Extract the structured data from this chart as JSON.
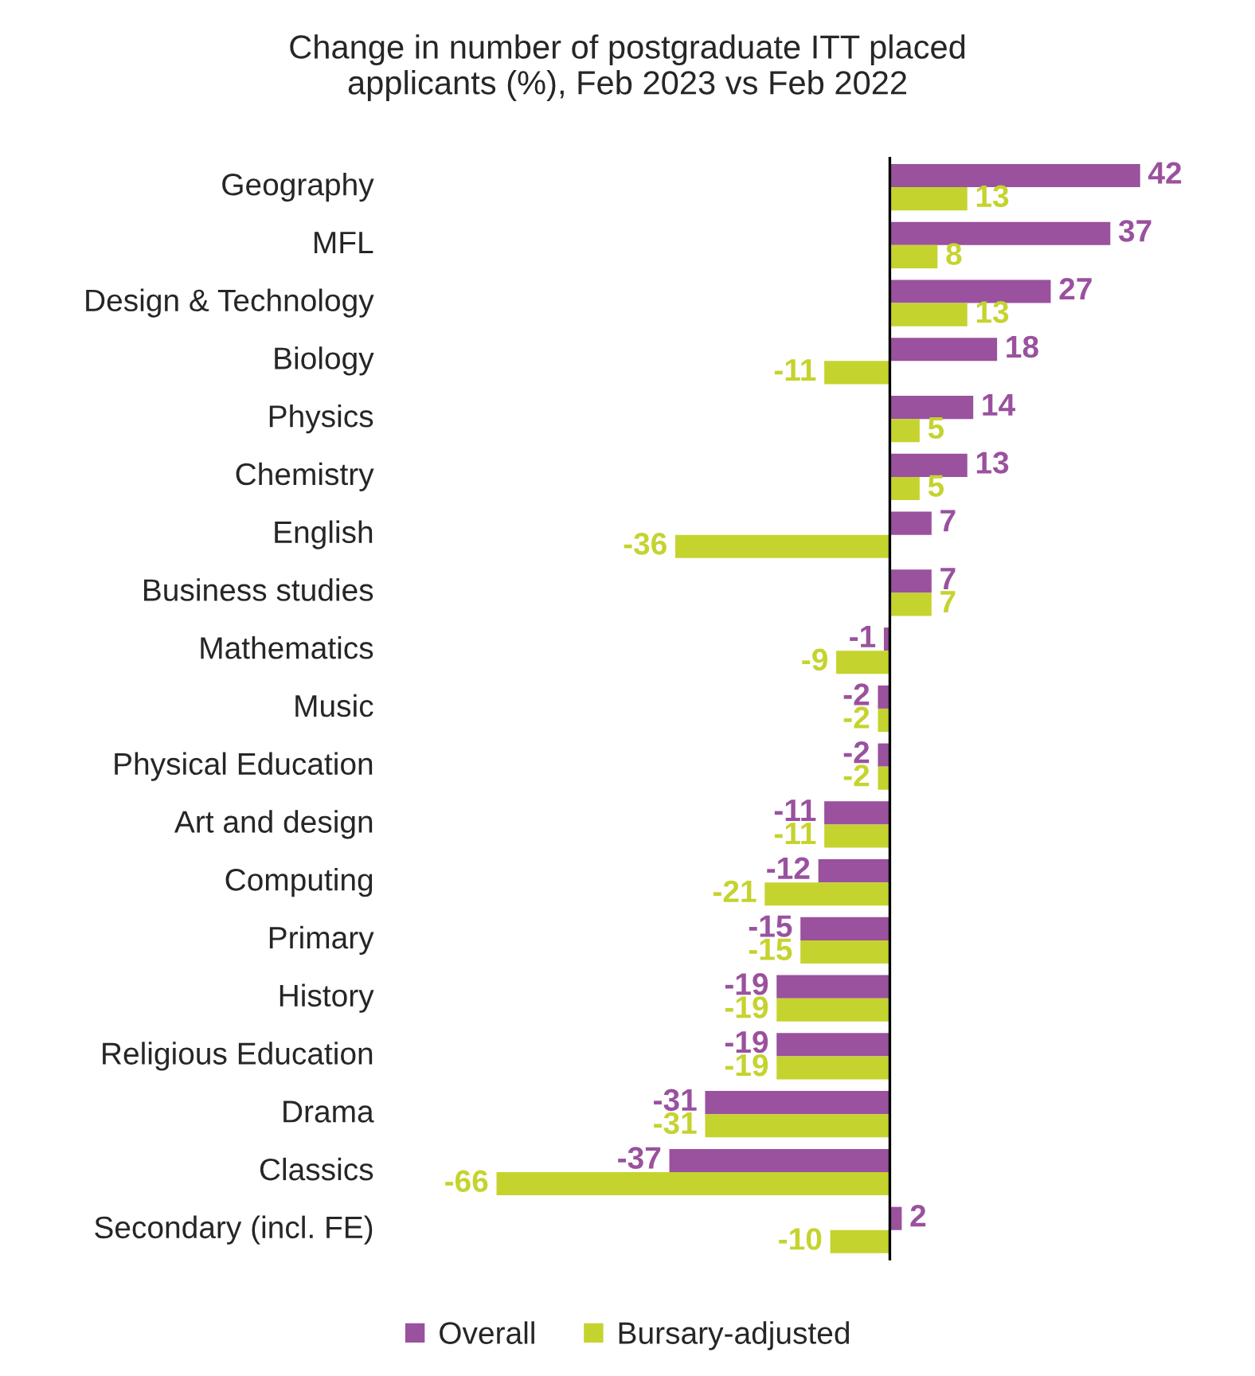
{
  "chart_data": {
    "type": "bar",
    "orientation": "horizontal",
    "title": "Change in number of postgraduate ITT placed\napplicants (%), Feb 2023 vs Feb 2022",
    "categories": [
      "Geography",
      "MFL",
      "Design & Technology",
      "Biology",
      "Physics",
      "Chemistry",
      "English",
      "Business studies",
      "Mathematics",
      "Music",
      "Physical Education",
      "Art and design",
      "Computing",
      "Primary",
      "History",
      "Religious Education",
      "Drama",
      "Classics",
      "Secondary (incl. FE)"
    ],
    "series": [
      {
        "name": "Overall",
        "color": "#9a519e",
        "values": [
          42,
          37,
          27,
          18,
          14,
          13,
          7,
          7,
          -1,
          -2,
          -2,
          -11,
          -12,
          -15,
          -19,
          -19,
          -31,
          -37,
          2
        ]
      },
      {
        "name": "Bursary-adjusted",
        "color": "#c5d32e",
        "values": [
          13,
          8,
          13,
          -11,
          5,
          5,
          -36,
          7,
          -9,
          -2,
          -2,
          -11,
          -21,
          -15,
          -19,
          -19,
          -31,
          -66,
          -10
        ]
      }
    ],
    "data_labels": true,
    "legend": "bottom"
  }
}
